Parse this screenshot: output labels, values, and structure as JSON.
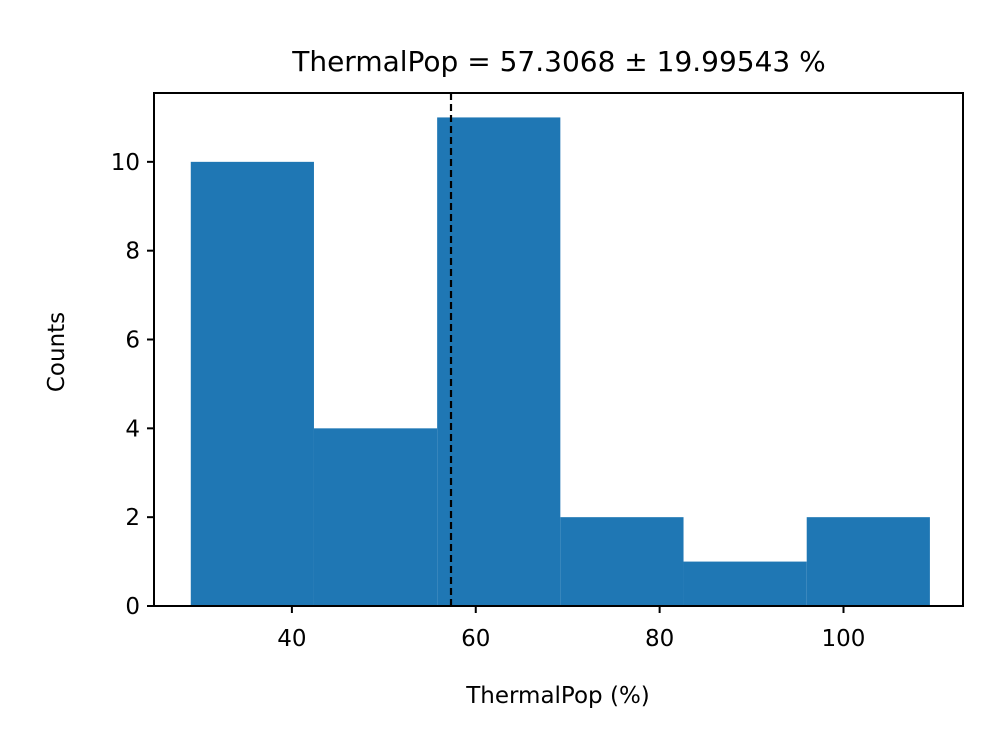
{
  "chart_data": {
    "type": "bar",
    "title": "ThermalPop = 57.3068  ± 19.99543 %",
    "xlabel": "ThermalPop (%)",
    "ylabel": "Counts",
    "bin_edges": [
      29.0,
      42.4,
      55.8,
      69.2,
      82.6,
      96.0,
      109.4
    ],
    "values": [
      10,
      4,
      11,
      2,
      1,
      2
    ],
    "mean_line": 57.3068,
    "xlim": [
      25,
      113
    ],
    "ylim": [
      0,
      11.55
    ],
    "xticks": [
      40,
      60,
      80,
      100
    ],
    "yticks": [
      0,
      2,
      4,
      6,
      8,
      10
    ],
    "bar_color": "#1f77b4",
    "mean_line_color": "#000000",
    "grid": false
  }
}
